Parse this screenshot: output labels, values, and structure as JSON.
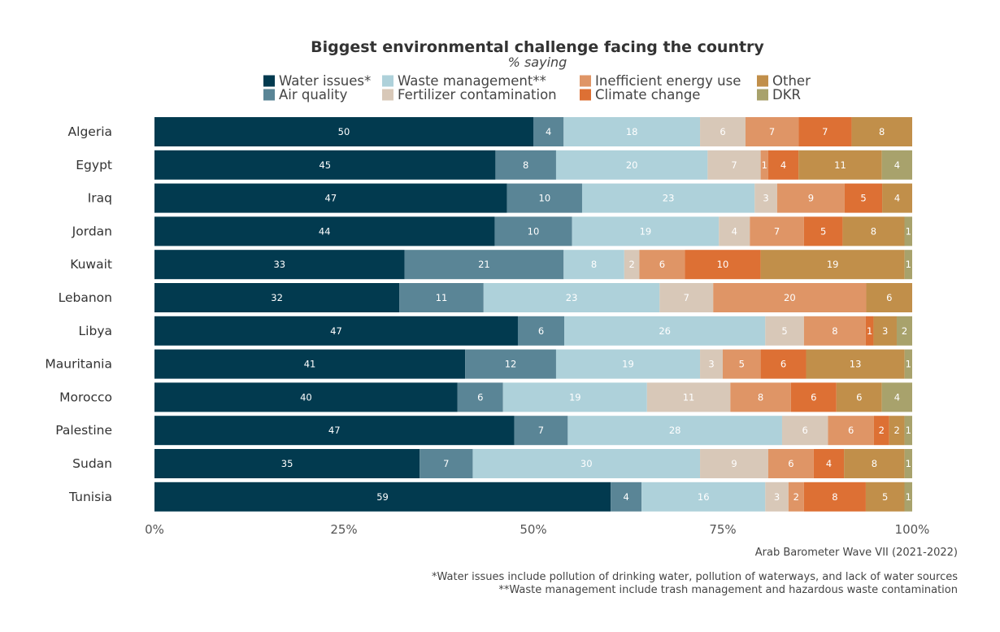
{
  "chart_data": {
    "type": "bar",
    "orientation": "horizontal",
    "stacked": true,
    "title": "Biggest environmental challenge facing the country",
    "subtitle": "% saying",
    "categories": [
      "Algeria",
      "Egypt",
      "Iraq",
      "Jordan",
      "Kuwait",
      "Lebanon",
      "Libya",
      "Mauritania",
      "Morocco",
      "Palestine",
      "Sudan",
      "Tunisia"
    ],
    "series": [
      {
        "name": "Water issues*",
        "color": "#023a4f",
        "values": [
          50,
          45,
          47,
          44,
          33,
          32,
          47,
          41,
          40,
          47,
          35,
          59
        ]
      },
      {
        "name": "Air quality",
        "color": "#5a8596",
        "values": [
          4,
          8,
          10,
          10,
          21,
          11,
          6,
          12,
          6,
          7,
          7,
          4
        ]
      },
      {
        "name": "Waste management**",
        "color": "#aed1da",
        "values": [
          18,
          20,
          23,
          19,
          8,
          23,
          26,
          19,
          19,
          28,
          30,
          16
        ]
      },
      {
        "name": "Fertilizer contamination",
        "color": "#d8c8b8",
        "values": [
          6,
          7,
          3,
          4,
          2,
          7,
          5,
          3,
          11,
          6,
          9,
          3
        ]
      },
      {
        "name": "Inefficient energy use",
        "color": "#df9566",
        "values": [
          7,
          1,
          9,
          7,
          6,
          20,
          8,
          5,
          8,
          6,
          6,
          2
        ]
      },
      {
        "name": "Climate change",
        "color": "#dd7034",
        "values": [
          7,
          4,
          5,
          5,
          10,
          0,
          1,
          6,
          6,
          2,
          4,
          8
        ]
      },
      {
        "name": "Other",
        "color": "#c18f4a",
        "values": [
          8,
          11,
          4,
          8,
          19,
          6,
          3,
          13,
          6,
          2,
          8,
          5
        ]
      },
      {
        "name": "DKR",
        "color": "#a8a26c",
        "values": [
          0,
          4,
          0,
          1,
          1,
          0,
          2,
          1,
          4,
          1,
          1,
          1
        ]
      }
    ],
    "xaxis": {
      "ticks": [
        "0%",
        "25%",
        "50%",
        "75%",
        "100%"
      ],
      "range": [
        0,
        100
      ]
    },
    "legend_position": "top",
    "source": "Arab Barometer Wave VII (2021-2022)",
    "notes": [
      "*Water issues include pollution of drinking water, pollution of waterways, and lack of water sources",
      "**Waste management include trash management and hazardous waste contamination"
    ]
  }
}
